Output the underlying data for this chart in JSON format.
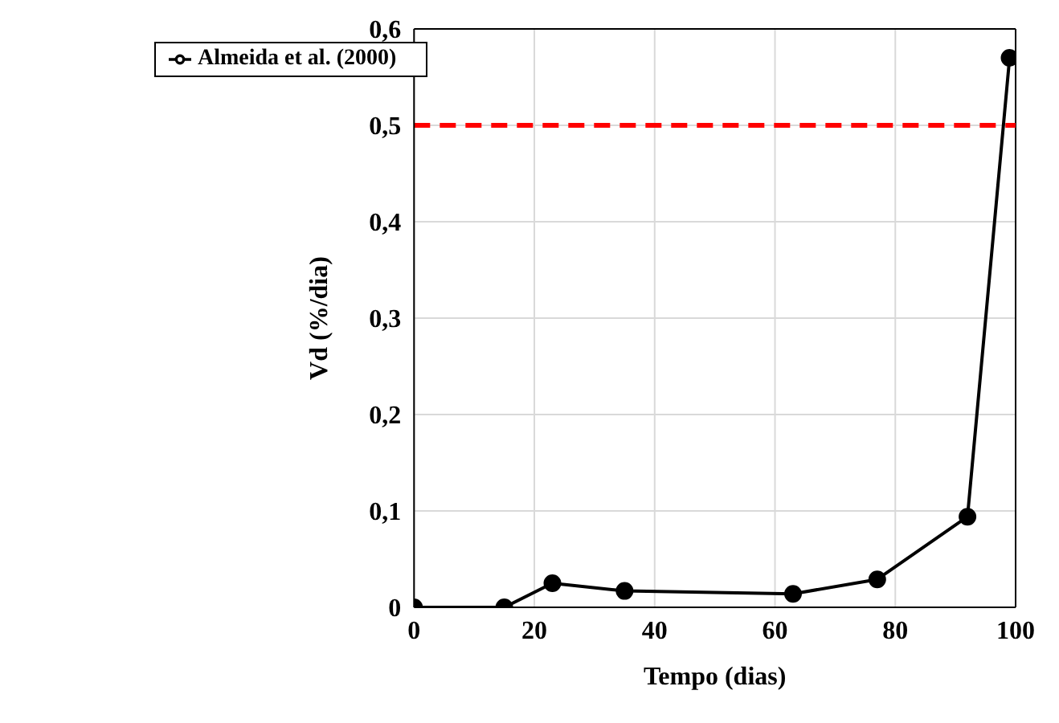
{
  "chart_data": {
    "type": "line",
    "xlabel": "Tempo (dias)",
    "ylabel": "Vd  (%/dia)",
    "x": [
      0,
      15,
      23,
      35,
      63,
      77,
      92,
      99
    ],
    "series": [
      {
        "name": "Almeida et al. (2000)",
        "color": "#000000",
        "values": [
          0,
          0,
          0.025,
          0.017,
          0.014,
          0.029,
          0.094,
          0.57
        ]
      }
    ],
    "xlim": [
      0,
      100
    ],
    "xticks": [
      0,
      20,
      40,
      60,
      80,
      100
    ],
    "ylim": [
      0,
      0.6
    ],
    "yticks": [
      {
        "value": 0,
        "label": "0"
      },
      {
        "value": 0.1,
        "label": "0,1"
      },
      {
        "value": 0.2,
        "label": "0,2"
      },
      {
        "value": 0.3,
        "label": "0,3"
      },
      {
        "value": 0.4,
        "label": "0,4"
      },
      {
        "value": 0.5,
        "label": "0,5"
      },
      {
        "value": 0.6,
        "label": "0,6"
      }
    ],
    "ref_lines": [
      {
        "axis": "y",
        "value": 0.5,
        "color": "#ff0000",
        "line_style": "dashed"
      }
    ],
    "grid": true,
    "legend": "top left",
    "marker": "circle",
    "line_style": "solid"
  }
}
